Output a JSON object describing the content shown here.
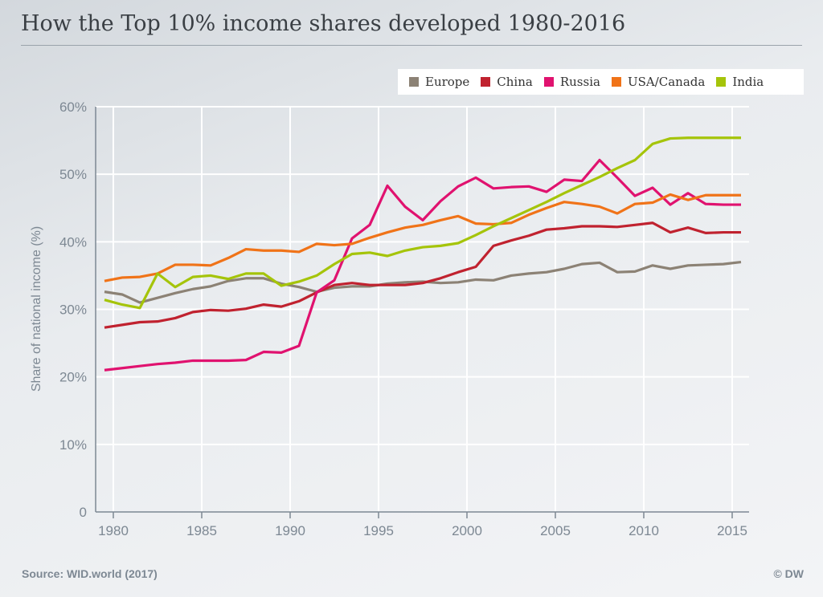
{
  "title": "How the Top 10% income shares developed 1980-2016",
  "source": "Source: WID.world (2017)",
  "credit": "© DW",
  "chart_data": {
    "type": "line",
    "title": "How the Top 10% income shares developed 1980-2016",
    "ylabel": "Share of national income (%)",
    "xlabel": "",
    "xlim": [
      1980,
      2016
    ],
    "ylim": [
      0,
      60
    ],
    "x_ticks": [
      1980,
      1985,
      1990,
      1995,
      2000,
      2005,
      2010,
      2015
    ],
    "y_ticks": [
      "0",
      "10%",
      "20%",
      "30%",
      "40%",
      "50%",
      "60%"
    ],
    "y_tick_values": [
      0,
      10,
      20,
      30,
      40,
      50,
      60
    ],
    "grid": true,
    "legend_placement": "top-right",
    "x": [
      1980,
      1981,
      1982,
      1983,
      1984,
      1985,
      1986,
      1987,
      1988,
      1989,
      1990,
      1991,
      1992,
      1993,
      1994,
      1995,
      1996,
      1997,
      1998,
      1999,
      2000,
      2001,
      2002,
      2003,
      2004,
      2005,
      2006,
      2007,
      2008,
      2009,
      2010,
      2011,
      2012,
      2013,
      2014,
      2015,
      2016
    ],
    "series": [
      {
        "name": "Europe",
        "color": "#8c8275",
        "values": [
          32.6,
          32.2,
          31.0,
          31.7,
          32.4,
          33.0,
          33.4,
          34.2,
          34.6,
          34.6,
          33.8,
          33.3,
          32.6,
          33.2,
          33.4,
          33.4,
          33.8,
          34.0,
          34.1,
          33.9,
          34.0,
          34.4,
          34.3,
          35.0,
          35.3,
          35.5,
          36.0,
          36.7,
          36.9,
          35.5,
          35.6,
          36.5,
          36.0,
          36.5,
          36.6,
          36.7,
          37.0
        ]
      },
      {
        "name": "China",
        "color": "#c0222f",
        "values": [
          27.3,
          27.7,
          28.1,
          28.2,
          28.7,
          29.6,
          29.9,
          29.8,
          30.1,
          30.7,
          30.4,
          31.2,
          32.5,
          33.6,
          33.9,
          33.6,
          33.6,
          33.6,
          33.9,
          34.6,
          35.5,
          36.3,
          39.4,
          40.2,
          40.9,
          41.8,
          42.0,
          42.3,
          42.3,
          42.2,
          42.5,
          42.8,
          41.4,
          42.1,
          41.3,
          41.4,
          41.4
        ]
      },
      {
        "name": "Russia",
        "color": "#e0126f",
        "values": [
          21.0,
          21.3,
          21.6,
          21.9,
          22.1,
          22.4,
          22.4,
          22.4,
          22.5,
          23.7,
          23.6,
          24.6,
          32.5,
          34.3,
          40.5,
          42.5,
          48.3,
          45.2,
          43.2,
          46.0,
          48.2,
          49.5,
          47.9,
          48.1,
          48.2,
          47.4,
          49.2,
          49.0,
          52.1,
          49.5,
          46.8,
          48.0,
          45.5,
          47.2,
          45.6,
          45.5,
          45.5
        ]
      },
      {
        "name": "USA/Canada",
        "color": "#f07318",
        "values": [
          34.2,
          34.7,
          34.8,
          35.3,
          36.6,
          36.6,
          36.5,
          37.6,
          38.9,
          38.7,
          38.7,
          38.5,
          39.7,
          39.5,
          39.7,
          40.6,
          41.4,
          42.1,
          42.5,
          43.2,
          43.8,
          42.7,
          42.6,
          42.8,
          44.0,
          45.0,
          45.9,
          45.6,
          45.2,
          44.2,
          45.6,
          45.8,
          47.0,
          46.2,
          46.9,
          46.9,
          46.9
        ]
      },
      {
        "name": "India",
        "color": "#a5c40a",
        "values": [
          31.4,
          30.7,
          30.2,
          35.3,
          33.3,
          34.8,
          35.0,
          34.5,
          35.3,
          35.3,
          33.5,
          34.1,
          35.0,
          36.7,
          38.2,
          38.4,
          37.9,
          38.7,
          39.2,
          39.4,
          39.8,
          41.0,
          42.3,
          43.5,
          44.7,
          45.9,
          47.2,
          48.4,
          49.6,
          50.9,
          52.1,
          54.5,
          55.3,
          55.4,
          55.4,
          55.4,
          55.4
        ]
      }
    ]
  }
}
